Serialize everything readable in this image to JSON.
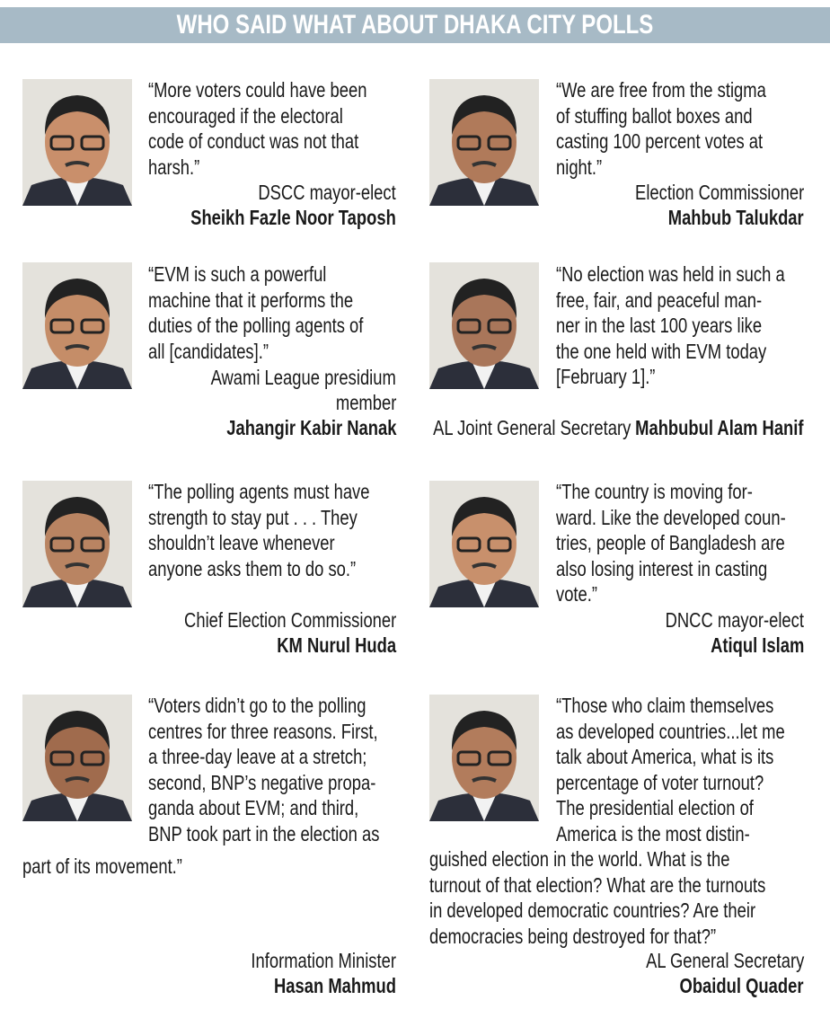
{
  "header": {
    "title": "WHO SAID WHAT ABOUT DHAKA CITY POLLS"
  },
  "quotes": [
    {
      "lines": [
        "“More voters could have been",
        "encouraged if the electoral",
        "code of conduct was not that",
        "harsh.”"
      ],
      "role": [
        "DSCC mayor-elect"
      ],
      "name": "Sheikh Fazle Noor Taposh"
    },
    {
      "lines": [
        "“We are free from the stigma",
        "of stuffing ballot boxes and",
        "casting 100 percent votes at",
        "night.”"
      ],
      "role": [
        "Election Commissioner"
      ],
      "name": "Mahbub Talukdar"
    },
    {
      "lines": [
        "“EVM is such a powerful",
        "machine that it performs the",
        "duties of the polling agents of",
        "all [candidates].”"
      ],
      "role": [
        "Awami League presidium",
        "member"
      ],
      "name": "Jahangir Kabir Nanak"
    },
    {
      "lines": [
        "“No election was held in such a",
        "free, fair, and peaceful man-",
        "ner in the last 100 years like",
        "the one held with EVM today",
        "[February 1].”"
      ],
      "role": [
        "AL Joint General Secretary"
      ],
      "name": "Mahbubul Alam Hanif"
    },
    {
      "lines": [
        "“The polling agents must have",
        "strength to stay put . . . They",
        "shouldn’t leave whenever",
        "anyone asks them to do so.”"
      ],
      "role": [
        "Chief Election Commissioner"
      ],
      "name": "KM Nurul Huda"
    },
    {
      "lines": [
        "“The country is moving for-",
        "ward. Like the developed coun-",
        "tries, people of Bangladesh are",
        "also losing interest in casting",
        "vote.”"
      ],
      "role": [
        "DNCC mayor-elect"
      ],
      "name": "Atiqul Islam"
    },
    {
      "lines": [
        "“Voters didn’t go to the polling",
        "centres for three reasons. First,",
        "a three-day leave at a stretch;",
        "second, BNP’s negative propa-",
        "ganda about EVM; and third,",
        "BNP took part in the election as",
        "part of its movement.”"
      ],
      "role": [
        "Information Minister"
      ],
      "name": "Hasan Mahmud"
    },
    {
      "lines": [
        "“Those who claim themselves",
        "as developed countries...let me",
        "talk about America, what is its",
        "percentage of voter turnout?",
        "The presidential election of",
        "America is the most distin-",
        "guished election in the world. What is the",
        "turnout of that election? What are the turnouts",
        "in developed democratic countries? Are their",
        "democracies being destroyed for that?”"
      ],
      "role": [
        "AL General Secretary"
      ],
      "name": "Obaidul Quader"
    }
  ]
}
